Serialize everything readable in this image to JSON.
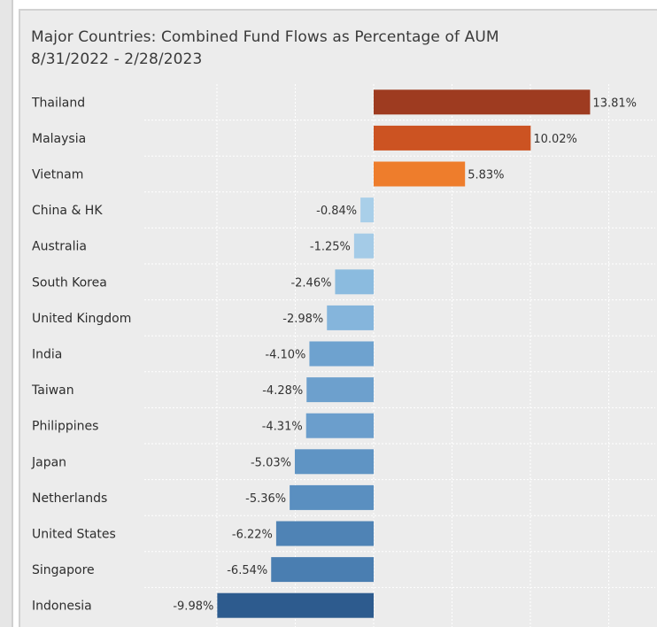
{
  "chart_data": {
    "type": "bar",
    "orientation": "horizontal",
    "title": "Major Countries:  Combined Fund Flows as Percentage of AUM",
    "subtitle": "8/31/2022 - 2/28/2023",
    "categories": [
      "Thailand",
      "Malaysia",
      "Vietnam",
      "China & HK",
      "Australia",
      "South Korea",
      "United Kingdom",
      "India",
      "Taiwan",
      "Philippines",
      "Japan",
      "Netherlands",
      "United States",
      "Singapore",
      "Indonesia"
    ],
    "values": [
      13.81,
      10.02,
      5.83,
      -0.84,
      -1.25,
      -2.46,
      -2.98,
      -4.1,
      -4.28,
      -4.31,
      -5.03,
      -5.36,
      -6.22,
      -6.54,
      -9.98
    ],
    "value_labels": [
      "13.81%",
      "10.02%",
      "5.83%",
      "-0.84%",
      "-1.25%",
      "-2.46%",
      "-2.98%",
      "-4.10%",
      "-4.28%",
      "-4.31%",
      "-5.03%",
      "-5.36%",
      "-6.22%",
      "-6.54%",
      "-9.98%"
    ],
    "colors": [
      "#9e3b20",
      "#cc5322",
      "#ee7d2c",
      "#a9cfe9",
      "#a4cbe7",
      "#8bbbdf",
      "#85b5dc",
      "#6ea2cf",
      "#6da0cd",
      "#6b9ecc",
      "#5f94c4",
      "#5a8fc0",
      "#4f83b5",
      "#4a7eb1",
      "#2d5b8e"
    ],
    "xlim": [
      -10,
      15
    ],
    "grid": true,
    "legend": "none"
  }
}
